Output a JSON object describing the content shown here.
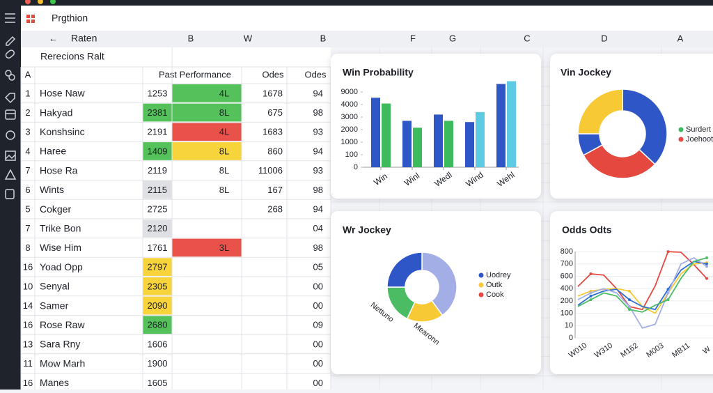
{
  "window": {
    "title": "Prgthion"
  },
  "toolbar": {
    "back_label": "Raten",
    "columns": [
      "B",
      "W",
      "B",
      "F",
      "G",
      "C",
      "D",
      "A"
    ]
  },
  "sheet": {
    "name_cell": "Rerecions Ralt",
    "headers": [
      "A",
      "Past Performance",
      "Odes",
      "Odes"
    ],
    "fills": {
      "green": "#55c15a",
      "yellow": "#f7d33c",
      "red": "#e8524a",
      "gray": "#dfe0e4"
    },
    "rows": [
      {
        "n": 1,
        "name": "Hose Naw",
        "num": 1253,
        "num_fill": null,
        "perf": "4L",
        "perf_fill": "green",
        "odds": 1678,
        "odes": "94"
      },
      {
        "n": 2,
        "name": "Hakyad",
        "num": 2381,
        "num_fill": "green",
        "perf": "8L",
        "perf_fill": "green",
        "odds": 675,
        "odes": "98"
      },
      {
        "n": 3,
        "name": "Konshsinc",
        "num": 2191,
        "num_fill": null,
        "perf": "4L",
        "perf_fill": "red",
        "odds": 1683,
        "odes": "93"
      },
      {
        "n": 4,
        "name": "Haree",
        "num": 1409,
        "num_fill": "green",
        "perf": "8L",
        "perf_fill": "yellow",
        "odds": 860,
        "odes": "94"
      },
      {
        "n": 7,
        "name": "Hose Ra",
        "num": 2119,
        "num_fill": null,
        "perf": "8L",
        "perf_fill": null,
        "odds": 11006,
        "odes": "93"
      },
      {
        "n": 6,
        "name": "Wints",
        "num": 2115,
        "num_fill": "gray",
        "perf": "8L",
        "perf_fill": null,
        "odds": 167,
        "odes": "98"
      },
      {
        "n": 5,
        "name": "Cokger",
        "num": 2725,
        "num_fill": null,
        "perf": null,
        "perf_fill": null,
        "odds": 268,
        "odes": "94"
      },
      {
        "n": 7,
        "name": "Trike Bon",
        "num": 2120,
        "num_fill": "gray",
        "perf": null,
        "perf_fill": null,
        "odds": null,
        "odes": "04"
      },
      {
        "n": 8,
        "name": "Wise Him",
        "num": 1761,
        "num_fill": null,
        "perf": "3L",
        "perf_fill": "red",
        "odds": null,
        "odes": "98"
      },
      {
        "n": 16,
        "name": "Yoad Opp",
        "num": 2797,
        "num_fill": "yellow",
        "perf": null,
        "perf_fill": null,
        "odds": null,
        "odes": "05"
      },
      {
        "n": 10,
        "name": "Senyal",
        "num": 2305,
        "num_fill": "yellow",
        "perf": null,
        "perf_fill": null,
        "odds": null,
        "odes": "00"
      },
      {
        "n": 14,
        "name": "Samer",
        "num": 2090,
        "num_fill": "yellow",
        "perf": null,
        "perf_fill": null,
        "odds": null,
        "odes": "00"
      },
      {
        "n": 16,
        "name": "Rose Raw",
        "num": 2680,
        "num_fill": "green",
        "perf": null,
        "perf_fill": null,
        "odds": null,
        "odes": "09"
      },
      {
        "n": 13,
        "name": "Sara Rny",
        "num": 1606,
        "num_fill": null,
        "perf": null,
        "perf_fill": null,
        "odds": null,
        "odes": "00"
      },
      {
        "n": 11,
        "name": "Mow Marh",
        "num": 1900,
        "num_fill": null,
        "perf": null,
        "perf_fill": null,
        "odds": null,
        "odes": "00"
      },
      {
        "n": 16,
        "name": "Manes",
        "num": 1605,
        "num_fill": null,
        "perf": null,
        "perf_fill": null,
        "odds": null,
        "odes": "00"
      }
    ]
  },
  "charts": [
    {
      "type": "bar",
      "title": "Win Probability",
      "categories": [
        "Win",
        "Winl",
        "Wedl",
        "Wind",
        "Wehl"
      ],
      "ylim": [
        0,
        14000
      ],
      "yticks": [
        0,
        100,
        1000,
        2000,
        3000,
        4000,
        9000
      ],
      "series": [
        {
          "color": "#2f56c6",
          "values": [
            6700,
            2700,
            3200,
            2600,
            12200
          ]
        },
        {
          "colors": [
            "#3dba5b",
            "#3dba5b",
            "#3dba5b",
            "#5ccbe3",
            "#5ccbe3"
          ],
          "values": [
            4400,
            2150,
            2700,
            3400,
            13300
          ]
        }
      ]
    },
    {
      "type": "donut",
      "title": "Vin Jockey",
      "values": [
        37,
        30,
        8,
        25
      ],
      "colors": [
        "#2f56c6",
        "#e5483f",
        "#2f56c6",
        "#f6c935"
      ],
      "legend": [
        {
          "name": "Surdert",
          "color": "#3dba5b"
        },
        {
          "name": "Joehoot",
          "color": "#e5483f"
        }
      ]
    },
    {
      "type": "donut",
      "title": "Wr Jockey",
      "values": [
        40,
        17,
        18,
        25
      ],
      "categories": [
        null,
        "Mearonn",
        "Nettuno",
        null
      ],
      "colors": [
        "#a4aee6",
        "#f6c935",
        "#4cbc64",
        "#2f56c6"
      ],
      "legend": [
        {
          "name": "Uodrey",
          "color": "#2f56c6"
        },
        {
          "name": "Outk",
          "color": "#f6c935"
        },
        {
          "name": "Cook",
          "color": "#e5483f"
        }
      ]
    },
    {
      "type": "line",
      "title": "Odds Odts",
      "categories": [
        "W010",
        null,
        "W310",
        null,
        "M162",
        null,
        "M003",
        null,
        "MB11",
        null,
        "W"
      ],
      "ylim": [
        0,
        800
      ],
      "yticks": [
        0,
        10,
        100,
        200,
        400,
        600,
        700,
        800
      ],
      "series": [
        {
          "color": "#e5483f",
          "values": [
            435,
            620,
            610,
            400,
            155,
            130,
            445,
            800,
            795,
            695,
            565
          ]
        },
        {
          "color": "#f6c935",
          "values": [
            280,
            360,
            390,
            400,
            360,
            155,
            100,
            330,
            620,
            700,
            710
          ]
        },
        {
          "color": "#2f6fd0",
          "values": [
            165,
            280,
            360,
            390,
            220,
            155,
            130,
            390,
            650,
            720,
            700
          ]
        },
        {
          "color": "#a4aee6",
          "values": [
            220,
            330,
            400,
            330,
            155,
            8,
            20,
            330,
            700,
            750,
            680
          ]
        },
        {
          "color": "#4cbc64",
          "values": [
            155,
            220,
            330,
            280,
            130,
            110,
            165,
            220,
            565,
            720,
            750
          ]
        }
      ]
    }
  ]
}
